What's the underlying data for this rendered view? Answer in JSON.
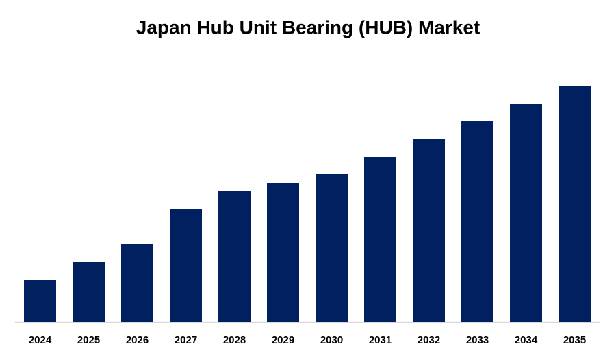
{
  "chart_data": {
    "type": "bar",
    "title": "Japan Hub Unit Bearing (HUB) Market",
    "categories": [
      "2024",
      "2025",
      "2026",
      "2027",
      "2028",
      "2029",
      "2030",
      "2031",
      "2032",
      "2033",
      "2034",
      "2035"
    ],
    "values": [
      62,
      88,
      114,
      165,
      191,
      204,
      217,
      242,
      268,
      294,
      319,
      345
    ],
    "color": "#002060",
    "ylim": [
      0,
      350
    ]
  }
}
